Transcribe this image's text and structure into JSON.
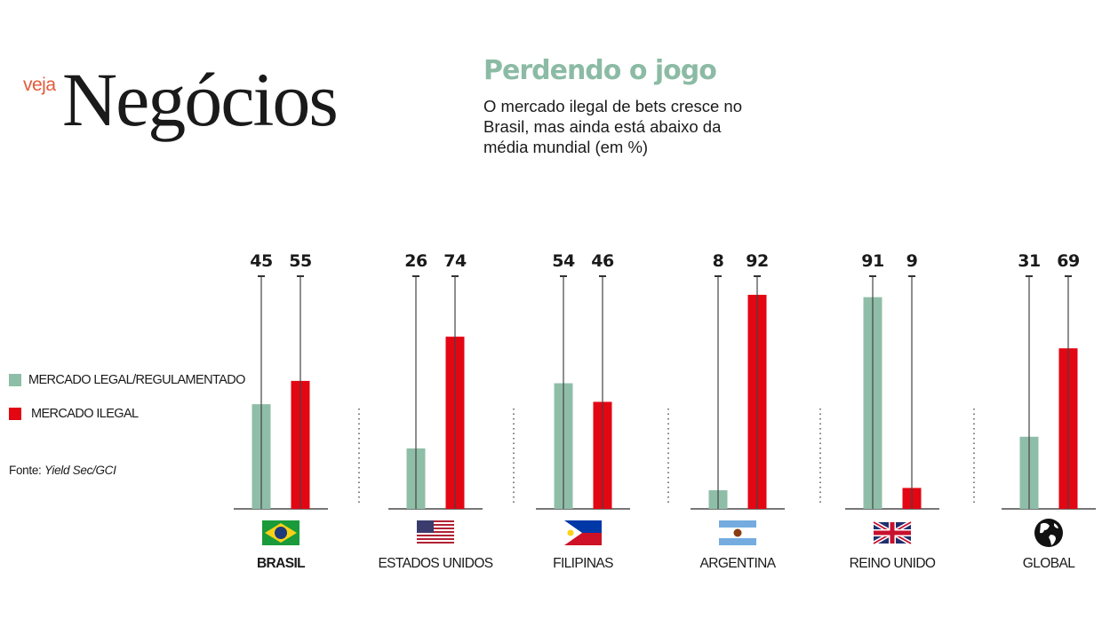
{
  "header": {
    "logo_small": "veja",
    "logo_main": "Negócios",
    "title": "Perdendo o jogo",
    "subtitle": "O mercado ilegal de bets cresce no Brasil, mas ainda está abaixo da média mundial (em %)"
  },
  "legend": {
    "items": [
      {
        "label": "MERCADO LEGAL/REGULAMENTADO",
        "color": "#8fbea8"
      },
      {
        "label": "MERCADO ILEGAL",
        "color": "#e30613"
      }
    ]
  },
  "source": {
    "prefix": "Fonte:",
    "name": "Yield Sec/GCI"
  },
  "countries": [
    {
      "name": "BRASIL",
      "flag": "brazil-flag-icon"
    },
    {
      "name": "ESTADOS UNIDOS",
      "flag": "usa-flag-icon"
    },
    {
      "name": "FILIPINAS",
      "flag": "philippines-flag-icon"
    },
    {
      "name": "ARGENTINA",
      "flag": "argentina-flag-icon"
    },
    {
      "name": "REINO UNIDO",
      "flag": "uk-flag-icon"
    },
    {
      "name": "GLOBAL",
      "flag": "globe-icon"
    }
  ],
  "chart_data": {
    "type": "bar",
    "title": "Perdendo o jogo",
    "subtitle": "O mercado ilegal de bets cresce no Brasil, mas ainda está abaixo da média mundial (em %)",
    "categories": [
      "BRASIL",
      "ESTADOS UNIDOS",
      "FILIPINAS",
      "ARGENTINA",
      "REINO UNIDO",
      "GLOBAL"
    ],
    "series": [
      {
        "name": "MERCADO LEGAL/REGULAMENTADO",
        "color": "#8fbea8",
        "values": [
          45,
          26,
          54,
          8,
          91,
          31
        ]
      },
      {
        "name": "MERCADO ILEGAL",
        "color": "#e30613",
        "values": [
          55,
          74,
          46,
          92,
          9,
          69
        ]
      }
    ],
    "ylim": [
      0,
      100
    ],
    "xlabel": "",
    "ylabel": "%",
    "grid": false,
    "legend_position": "left"
  }
}
